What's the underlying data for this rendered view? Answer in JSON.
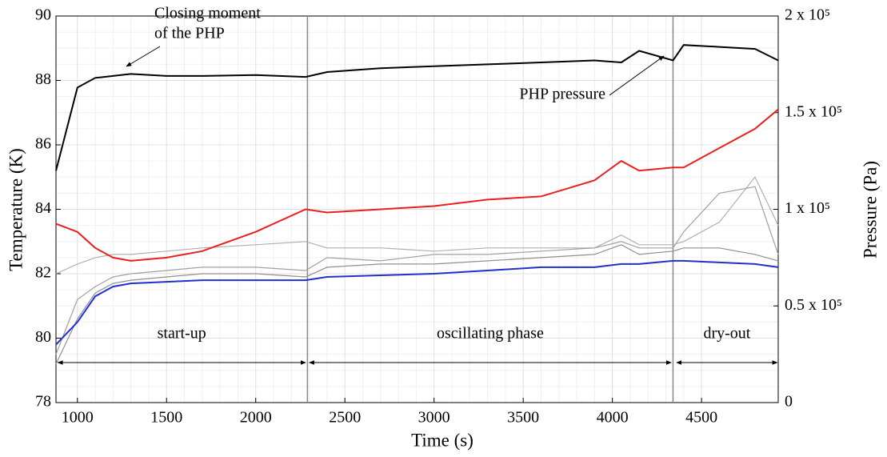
{
  "chart_data": {
    "type": "line",
    "xlabel": "Time (s)",
    "ylabel": "Temperature (K)",
    "y2label": "Pressure (Pa)",
    "x": [
      880,
      1000,
      1100,
      1200,
      1300,
      1500,
      1700,
      2000,
      2280,
      2400,
      2700,
      3000,
      3300,
      3600,
      3900,
      4050,
      4150,
      4340,
      4400,
      4600,
      4800,
      4930
    ],
    "series": [
      {
        "color": "#000000",
        "axis": "y2",
        "values": [
          120000,
          163000,
          168000,
          169000,
          170000,
          169000,
          169000,
          169500,
          168500,
          171000,
          173000,
          174000,
          175000,
          176000,
          177000,
          176000,
          182000,
          177000,
          185000,
          184000,
          183000,
          177000
        ]
      },
      {
        "color": "#b0b0b0",
        "values": [
          82.0,
          82.3,
          82.5,
          82.6,
          82.6,
          82.7,
          82.8,
          82.9,
          83.0,
          82.8,
          82.8,
          82.7,
          82.8,
          82.8,
          82.8,
          83.2,
          82.9,
          82.9,
          83.0,
          83.6,
          85.0,
          83.5
        ]
      },
      {
        "color": "#a0a0a0",
        "values": [
          79.5,
          81.2,
          81.6,
          81.9,
          82.0,
          82.1,
          82.2,
          82.2,
          82.1,
          82.5,
          82.4,
          82.6,
          82.6,
          82.7,
          82.8,
          83.0,
          82.8,
          82.8,
          83.3,
          84.5,
          84.7,
          82.6
        ]
      },
      {
        "color": "#909090",
        "values": [
          79.2,
          80.6,
          81.4,
          81.7,
          81.8,
          81.9,
          82.0,
          82.0,
          81.9,
          82.2,
          82.3,
          82.3,
          82.4,
          82.5,
          82.6,
          82.9,
          82.6,
          82.7,
          82.8,
          82.8,
          82.6,
          82.4
        ]
      },
      {
        "color": "#e8201e",
        "values": [
          83.55,
          83.3,
          82.8,
          82.5,
          82.4,
          82.5,
          82.7,
          83.3,
          84.0,
          83.9,
          84.0,
          84.1,
          84.3,
          84.4,
          84.9,
          85.5,
          85.2,
          85.3,
          85.3,
          85.9,
          86.5,
          87.1
        ]
      },
      {
        "color": "#2030d0",
        "values": [
          79.8,
          80.5,
          81.3,
          81.6,
          81.7,
          81.75,
          81.8,
          81.8,
          81.8,
          81.9,
          81.95,
          82.0,
          82.1,
          82.2,
          82.2,
          82.3,
          82.3,
          82.4,
          82.4,
          82.35,
          82.3,
          82.2
        ]
      }
    ],
    "xlim": [
      880,
      4930
    ],
    "xticks": [
      1000,
      1500,
      2000,
      2500,
      3000,
      3500,
      4000,
      4500
    ],
    "ylim": [
      78,
      90
    ],
    "yticks": [
      78,
      80,
      82,
      84,
      86,
      88,
      90
    ],
    "y2lim": [
      0,
      200000
    ],
    "y2ticks": [
      0,
      {
        "value": 50000,
        "label": "0.5 x 10⁵"
      },
      {
        "value": 100000,
        "label": "1 x 10⁵"
      },
      {
        "value": 150000,
        "label": "1.5 x 10⁵"
      },
      {
        "value": 200000,
        "label": "2 x 10⁵"
      }
    ],
    "grid": true,
    "phase_lines": [
      2290,
      4340
    ],
    "phases": [
      {
        "label": "start-up",
        "start": 890,
        "end": 2280
      },
      {
        "label": "oscillating phase",
        "start": 2300,
        "end": 4330
      },
      {
        "label": "dry-out",
        "start": 4360,
        "end": 4925
      }
    ],
    "closing_note": [
      "Closing moment",
      "of the PHP"
    ],
    "pressure_note": "PHP pressure"
  }
}
